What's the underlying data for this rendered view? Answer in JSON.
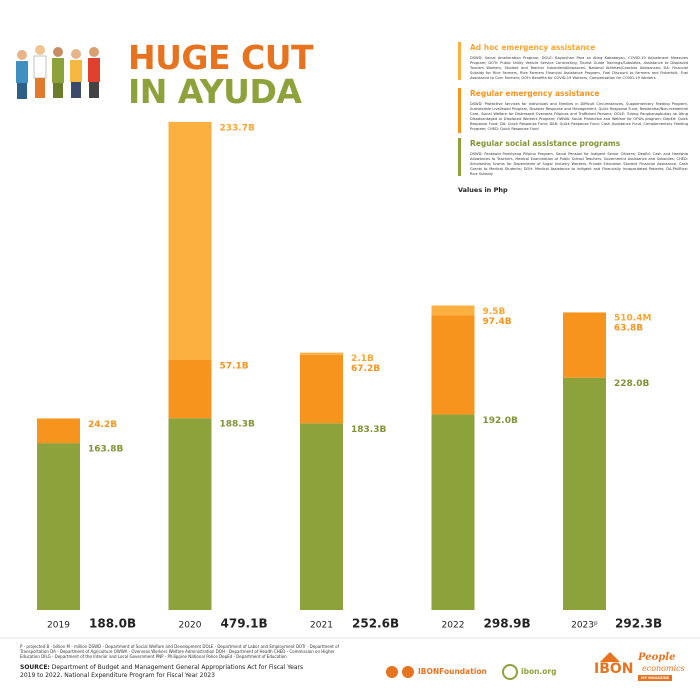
{
  "chart_data": {
    "type": "stacked-bar",
    "title": [
      "HUGE CUT",
      "IN AYUDA"
    ],
    "categories": [
      "2019",
      "2020",
      "2021",
      "2022",
      "2023ᵖ"
    ],
    "series": [
      {
        "name": "Regular social assistance programs",
        "color": "#8ea23c",
        "text_color": "#7f9434",
        "description": "DSWD: Pantawid Pamilyang Pilipino Program, Social Pension for Indigent Senior Citizens; DepEd: Cash and Hardship Allowances to Teachers, Medical Examination of Public School Teachers, Government Assistance and Subsidies; CHED: Scholarship Grants for Dependents of Sugar Industry Workers, Private Education Student Financial Assistance, Cash Grants to Medical Students; DOH: Medical Assistance to Indigent and Financially Incapacitated Patients; DA-PhilRice: Rice Subsidy",
        "values": [
          163.8,
          188.3,
          183.3,
          192.0,
          228.0
        ],
        "value_labels": [
          "163.8B",
          "188.3B",
          "183.3B",
          "192.0B",
          "228.0B"
        ]
      },
      {
        "name": "Regular emergency assistance",
        "color": "#f7941d",
        "text_color": "#f7941d",
        "description": "DSWD: Protective Services for Individuals and Families in Difficult Circumstances, Supplementary Feeding Program, Sustainable Livelihood Program, Disaster Response and Management, Quick Response Fund, Residential/Non-residential Care, Social Welfare for Distressed Overseas Filipinos and Trafficked Persons; DOLE: Tulong Panghanapbuhay sa Ating Disadvantaged or Displaced Workers Program; OWWA: Social Protection and Welfare for OFWs program; DepEd: Quick Response Fund; DA: Quick Response Fund; DAR: Quick Response Fund; Cash Assistance Fund, Complementary Feeding Program; CHED: Quick Response Fund",
        "values": [
          24.2,
          57.1,
          67.2,
          97.4,
          63.8
        ],
        "value_labels": [
          "24.2B",
          "57.1B",
          "67.2B",
          "97.4B",
          "63.8B"
        ]
      },
      {
        "name": "Ad hoc emergency assistance",
        "color": "#fbb03f",
        "text_color": "#f9a634",
        "description": "DSWD: Social Amelioration Program; DOLE: Bayanihan Para sa Ating Kababayan, COVID-19 Adjustment Measures Program; DOTr: Public Utility Vehicle Service Contracting, Tourist Guide Trainings/Subsidies, Assistance to Displaced Tourism Workers, Student and Teacher Subsidies/Allowances, National Athletes/Coaches Allowances; DA: Financial Subsidy for Rice Farmers, Rice Farmers Financial Assistance Program, Fuel Discount to Farmers and Fisherfolk, Fuel Assistance to Corn Farmers; DOH: Benefits for COVID-19 Workers, Compensation for COVID-19 Workers",
        "values": [
          null,
          233.7,
          2.1,
          9.5,
          0.5104
        ],
        "value_labels": [
          null,
          "233.7B",
          "2.1B",
          "9.5B",
          "510.4M"
        ]
      }
    ],
    "totals": {
      "values": [
        188.0,
        479.1,
        252.6,
        298.9,
        292.3
      ],
      "value_labels": [
        "188.0B",
        "479.1B",
        "252.6B",
        "298.9B",
        "292.3B"
      ]
    },
    "ylim": [
      0,
      480
    ],
    "unit_note": "Values in Php",
    "abbreviations": "P - projected   B - billion   M - million   DSWD - Department of Social Welfare and Development   DOLE - Department of Labor and Employment   DOTr - Department of Transportation   DA - Department of Agriculture   OWWA - Overseas Workers Welfare Administration   DOH - Department of Health   CHED - Commission on Higher Education   DILG - Department of the Interior and Local Government   PNP - Philippine National Police   DepEd - Department of Education",
    "source_label": "SOURCE:",
    "source": "Department of Budget and Management General Appropriations Act for Fiscal Years 2019 to 2022, National Expenditure Program for Fiscal Year 2023",
    "social": "IBONFoundation",
    "website": "ibon.org",
    "brand": "IBON",
    "magazine": [
      "People",
      "economics",
      "MY MAGAZINE"
    ]
  }
}
